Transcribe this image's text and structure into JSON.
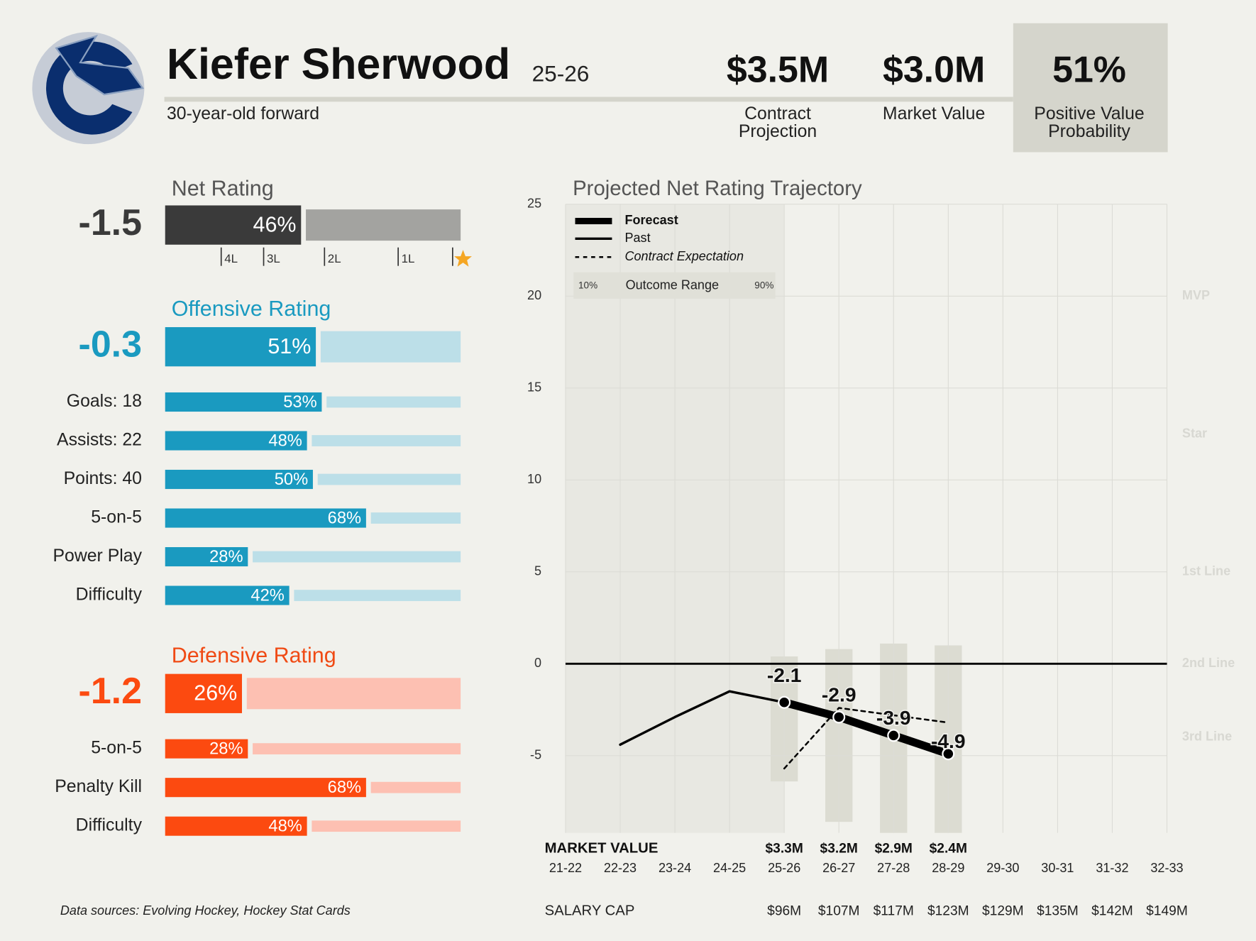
{
  "header": {
    "name": "Kiefer Sherwood",
    "season": "25-26",
    "description": "30-year-old forward",
    "stats": [
      {
        "value": "$3.5M",
        "label_lines": [
          "Contract",
          "Projection"
        ]
      },
      {
        "value": "$3.0M",
        "label_lines": [
          "Market Value"
        ]
      },
      {
        "value": "51%",
        "label_lines": [
          "Positive Value",
          "Probability"
        ]
      }
    ]
  },
  "net_rating": {
    "title": "Net Rating",
    "value": -1.5,
    "pct": 46,
    "pct_label": "46%",
    "tier_marks": [
      "4L",
      "3L",
      "2L",
      "1L"
    ]
  },
  "offensive_rating": {
    "title": "Offensive Rating",
    "value": -0.3,
    "pct": 51,
    "pct_label": "51%",
    "rows": [
      {
        "label": "Goals: 18",
        "pct": 53,
        "pct_label": "53%"
      },
      {
        "label": "Assists: 22",
        "pct": 48,
        "pct_label": "48%"
      },
      {
        "label": "Points: 40",
        "pct": 50,
        "pct_label": "50%"
      },
      {
        "label": "5-on-5",
        "pct": 68,
        "pct_label": "68%"
      },
      {
        "label": "Power Play",
        "pct": 28,
        "pct_label": "28%"
      },
      {
        "label": "Difficulty",
        "pct": 42,
        "pct_label": "42%"
      }
    ]
  },
  "defensive_rating": {
    "title": "Defensive Rating",
    "value": -1.2,
    "pct": 26,
    "pct_label": "26%",
    "rows": [
      {
        "label": "5-on-5",
        "pct": 28,
        "pct_label": "28%"
      },
      {
        "label": "Penalty Kill",
        "pct": 68,
        "pct_label": "68%"
      },
      {
        "label": "Difficulty",
        "pct": 48,
        "pct_label": "48%"
      }
    ]
  },
  "chart_data": {
    "type": "line",
    "title": "Projected Net Rating Trajectory",
    "categories": [
      "21-22",
      "22-23",
      "23-24",
      "24-25",
      "25-26",
      "26-27",
      "27-28",
      "28-29",
      "29-30",
      "30-31",
      "31-32",
      "32-33"
    ],
    "ylim": [
      -9.2,
      25
    ],
    "yticks": [
      -5,
      0,
      5,
      10,
      15,
      20,
      25
    ],
    "grid": true,
    "series": [
      {
        "name": "Forecast",
        "color": "#000000",
        "style": "thick",
        "values": [
          null,
          null,
          null,
          null,
          -2.1,
          -2.9,
          -3.9,
          -4.9,
          null,
          null,
          null,
          null
        ]
      },
      {
        "name": "Past",
        "color": "#000000",
        "style": "solid",
        "values": [
          null,
          -4.4,
          -2.9,
          -1.5,
          -2.1,
          null,
          null,
          null,
          null,
          null,
          null,
          null
        ]
      },
      {
        "name": "Contract Expectation",
        "color": "#000000",
        "style": "dashed",
        "values": [
          null,
          null,
          null,
          null,
          -5.7,
          -2.4,
          -2.8,
          -3.2,
          null,
          null,
          null,
          null
        ]
      }
    ],
    "outcome_range": {
      "name": "Outcome Range",
      "low_label": "10%",
      "high_label": "90%",
      "color": "#dcdcd2",
      "low": [
        null,
        null,
        null,
        null,
        -6.4,
        -8.6,
        -9.2,
        -9.2,
        null,
        null,
        null,
        null
      ],
      "high": [
        null,
        null,
        null,
        null,
        0.4,
        0.8,
        1.1,
        1.0,
        null,
        null,
        null,
        null
      ]
    },
    "tiers": [
      {
        "value": 20,
        "label": "MVP"
      },
      {
        "value": 12.5,
        "label": "Star"
      },
      {
        "value": 5,
        "label": "1st Line"
      },
      {
        "value": 0,
        "label": "2nd Line"
      },
      {
        "value": -4,
        "label": "3rd Line"
      }
    ],
    "market_value": {
      "label": "MARKET VALUE",
      "values": [
        null,
        null,
        null,
        null,
        "$3.3M",
        "$3.2M",
        "$2.9M",
        "$2.4M",
        null,
        null,
        null,
        null
      ]
    },
    "salary_cap": {
      "label": "SALARY CAP",
      "values": [
        null,
        null,
        null,
        null,
        "$96M",
        "$107M",
        "$117M",
        "$123M",
        "$129M",
        "$135M",
        "$142M",
        "$149M"
      ]
    }
  },
  "footer": {
    "source": "Data sources: Evolving Hockey, Hockey Stat Cards"
  }
}
